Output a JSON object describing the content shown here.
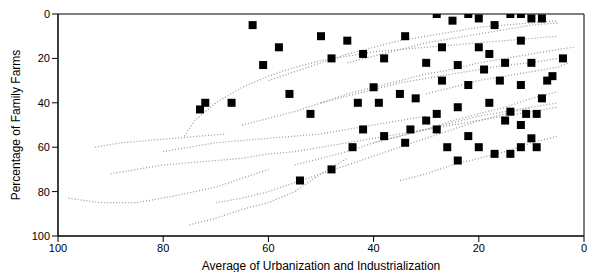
{
  "chart_data": {
    "type": "scatter",
    "xlabel": "Average of Urbanization and Industrialization",
    "ylabel": "Percentage of Family Farms",
    "xlim": [
      100,
      0
    ],
    "ylim": [
      100,
      0
    ],
    "xticks": [
      100,
      80,
      60,
      40,
      20,
      0
    ],
    "yticks": [
      0,
      20,
      40,
      60,
      80,
      100
    ],
    "grid": false,
    "series": [
      {
        "type": "line",
        "color": "#9a9a9a",
        "line_style": "dotted",
        "x": [
          75,
          70,
          65,
          60,
          55,
          50,
          45
        ],
        "y": [
          95,
          92,
          88,
          85,
          80,
          72,
          65
        ]
      },
      {
        "type": "line",
        "color": "#9a9a9a",
        "line_style": "dotted",
        "x": [
          98,
          92,
          85,
          78,
          70,
          60
        ],
        "y": [
          83,
          85,
          85,
          82,
          78,
          70
        ]
      },
      {
        "type": "line",
        "color": "#9a9a9a",
        "line_style": "dotted",
        "x": [
          90,
          85,
          80,
          75,
          70,
          65,
          60,
          55,
          50,
          45,
          40,
          35,
          30,
          25,
          20,
          15,
          10,
          5
        ],
        "y": [
          72,
          70,
          68,
          67,
          66,
          65,
          63,
          62,
          60,
          58,
          56,
          54,
          52,
          50,
          48,
          46,
          44,
          42
        ]
      },
      {
        "type": "line",
        "color": "#9a9a9a",
        "line_style": "dotted",
        "x": [
          76,
          74,
          70,
          65,
          60,
          55,
          50,
          45,
          40,
          35,
          30,
          25,
          20,
          15,
          10,
          5
        ],
        "y": [
          55,
          48,
          40,
          33,
          28,
          24,
          21,
          19,
          17,
          16,
          15,
          14,
          13,
          12,
          11,
          10
        ]
      },
      {
        "type": "line",
        "color": "#9a9a9a",
        "line_style": "dotted",
        "x": [
          65,
          60,
          55,
          50,
          45,
          40,
          35,
          30,
          25,
          20,
          15,
          10,
          5
        ],
        "y": [
          50,
          47,
          44,
          40,
          37,
          34,
          31,
          29,
          27,
          25,
          23,
          22,
          20
        ]
      },
      {
        "type": "line",
        "color": "#9a9a9a",
        "line_style": "dotted",
        "x": [
          70,
          65,
          60,
          55,
          50,
          45,
          40,
          35,
          30,
          25,
          20,
          15,
          10
        ],
        "y": [
          85,
          83,
          80,
          76,
          72,
          68,
          64,
          60,
          56,
          52,
          48,
          45,
          42
        ]
      },
      {
        "type": "line",
        "color": "#9a9a9a",
        "line_style": "dotted",
        "x": [
          60,
          55,
          50,
          45,
          40,
          35,
          30,
          25,
          20,
          15,
          10,
          5
        ],
        "y": [
          30,
          26,
          22,
          18,
          15,
          12,
          10,
          8,
          6,
          5,
          4,
          3
        ]
      },
      {
        "type": "line",
        "color": "#9a9a9a",
        "line_style": "dotted",
        "x": [
          55,
          50,
          45,
          40,
          35,
          30,
          25,
          20,
          15,
          10,
          5
        ],
        "y": [
          68,
          65,
          62,
          58,
          55,
          52,
          48,
          45,
          42,
          38,
          35
        ]
      },
      {
        "type": "line",
        "color": "#9a9a9a",
        "line_style": "dotted",
        "x": [
          50,
          45,
          40,
          35,
          30,
          25,
          20,
          15,
          10,
          5,
          2
        ],
        "y": [
          40,
          36,
          33,
          30,
          27,
          25,
          22,
          20,
          18,
          16,
          15
        ]
      },
      {
        "type": "line",
        "color": "#9a9a9a",
        "line_style": "dotted",
        "x": [
          45,
          40,
          35,
          30,
          25,
          20,
          15,
          10,
          5
        ],
        "y": [
          22,
          19,
          16,
          13,
          11,
          9,
          7,
          5,
          4
        ]
      },
      {
        "type": "line",
        "color": "#9a9a9a",
        "line_style": "dotted",
        "x": [
          40,
          35,
          30,
          25,
          20,
          15,
          10,
          5
        ],
        "y": [
          58,
          55,
          52,
          49,
          46,
          44,
          42,
          40
        ]
      },
      {
        "type": "line",
        "color": "#9a9a9a",
        "line_style": "dotted",
        "x": [
          35,
          30,
          25,
          20,
          15,
          10,
          5
        ],
        "y": [
          75,
          72,
          68,
          65,
          62,
          58,
          55
        ]
      },
      {
        "type": "line",
        "color": "#9a9a9a",
        "line_style": "dotted",
        "x": [
          80,
          75,
          70,
          65,
          60,
          55,
          50,
          45,
          40,
          35,
          30
        ],
        "y": [
          62,
          60,
          58,
          57,
          56,
          55,
          54,
          52,
          50,
          48,
          46
        ]
      },
      {
        "type": "line",
        "color": "#9a9a9a",
        "line_style": "dotted",
        "x": [
          93,
          88,
          83,
          78,
          73,
          68
        ],
        "y": [
          60,
          58,
          57,
          56,
          55,
          54
        ]
      },
      {
        "type": "line",
        "color": "#9a9a9a",
        "line_style": "dotted",
        "x": [
          30,
          25,
          20,
          15,
          10,
          5,
          3
        ],
        "y": [
          36,
          33,
          30,
          28,
          26,
          24,
          22
        ]
      },
      {
        "type": "scatter",
        "color": "#000000",
        "marker": "square",
        "x": [
          28,
          22,
          14,
          12,
          10,
          8,
          25,
          20,
          17,
          63,
          50,
          45,
          42,
          34,
          27,
          20,
          12,
          18,
          58,
          48,
          38,
          30,
          24,
          19,
          15,
          10,
          6,
          4,
          12,
          16,
          22,
          27,
          35,
          40,
          43,
          56,
          61,
          52,
          72,
          73,
          67,
          39,
          32,
          28,
          24,
          18,
          14,
          11,
          9,
          12,
          30,
          33,
          42,
          38,
          28,
          22,
          26,
          20,
          17,
          14,
          12,
          9,
          10,
          24,
          34,
          44,
          48,
          54,
          15,
          8,
          7
        ],
        "y": [
          0,
          0,
          0,
          0,
          2,
          2,
          3,
          2,
          5,
          5,
          10,
          12,
          18,
          10,
          15,
          15,
          12,
          18,
          15,
          20,
          20,
          22,
          23,
          25,
          22,
          22,
          28,
          20,
          32,
          30,
          32,
          30,
          36,
          33,
          40,
          36,
          23,
          45,
          40,
          43,
          40,
          40,
          38,
          45,
          42,
          40,
          44,
          45,
          45,
          50,
          48,
          52,
          52,
          55,
          52,
          55,
          60,
          60,
          63,
          63,
          60,
          60,
          56,
          66,
          58,
          60,
          70,
          75,
          48,
          38,
          30
        ]
      }
    ]
  }
}
